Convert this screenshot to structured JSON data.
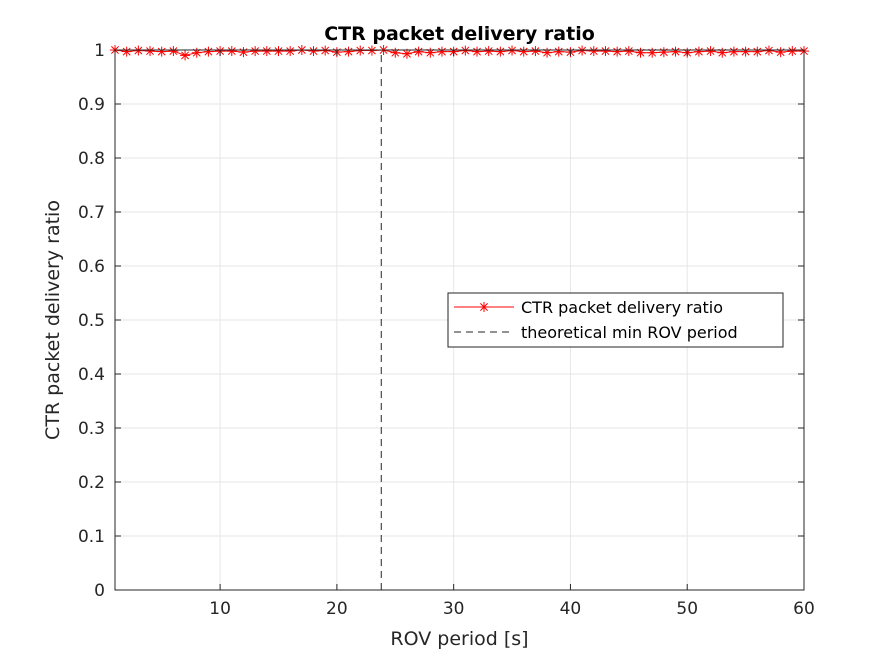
{
  "chart_data": {
    "type": "line",
    "title": "CTR packet delivery ratio",
    "xlabel": "ROV period [s]",
    "ylabel": "CTR packet delivery ratio",
    "xlim": [
      1,
      60
    ],
    "ylim": [
      0,
      1
    ],
    "xticks": [
      10,
      20,
      30,
      40,
      50,
      60
    ],
    "yticks": [
      0,
      0.1,
      0.2,
      0.3,
      0.4,
      0.5,
      0.6,
      0.7,
      0.8,
      0.9,
      1
    ],
    "ytick_labels": [
      "0",
      "0.1",
      "0.2",
      "0.3",
      "0.4",
      "0.5",
      "0.6",
      "0.7",
      "0.8",
      "0.9",
      "1"
    ],
    "xtick_labels": [
      "10",
      "20",
      "30",
      "40",
      "50",
      "60"
    ],
    "grid": true,
    "legend_position": "center-right",
    "series": [
      {
        "name": "CTR packet delivery ratio",
        "color": "#ff0000",
        "marker": "asterisk",
        "x": [
          1,
          2,
          3,
          4,
          5,
          6,
          7,
          8,
          9,
          10,
          11,
          12,
          13,
          14,
          15,
          16,
          17,
          18,
          19,
          20,
          21,
          22,
          23,
          24,
          25,
          26,
          27,
          28,
          29,
          30,
          31,
          32,
          33,
          34,
          35,
          36,
          37,
          38,
          39,
          40,
          41,
          42,
          43,
          44,
          45,
          46,
          47,
          48,
          49,
          50,
          51,
          52,
          53,
          54,
          55,
          56,
          57,
          58,
          59,
          60
        ],
        "y": [
          1.0,
          0.997,
          0.999,
          0.998,
          0.997,
          0.998,
          0.99,
          0.995,
          0.997,
          0.998,
          0.998,
          0.996,
          0.998,
          0.998,
          0.998,
          0.998,
          1.0,
          0.998,
          0.999,
          0.996,
          0.997,
          0.999,
          0.999,
          1.0,
          0.995,
          0.993,
          0.997,
          0.995,
          0.997,
          0.997,
          0.999,
          0.997,
          0.998,
          0.997,
          0.999,
          0.997,
          0.998,
          0.995,
          0.997,
          0.996,
          0.999,
          0.998,
          0.998,
          0.997,
          0.998,
          0.995,
          0.995,
          0.996,
          0.997,
          0.995,
          0.997,
          0.998,
          0.995,
          0.997,
          0.997,
          0.997,
          0.999,
          0.996,
          0.998,
          0.998
        ]
      },
      {
        "name": "theoretical min ROV period",
        "color": "#262626",
        "style": "dashed",
        "x": [
          23.8,
          23.8
        ],
        "y": [
          0,
          1
        ]
      }
    ]
  }
}
